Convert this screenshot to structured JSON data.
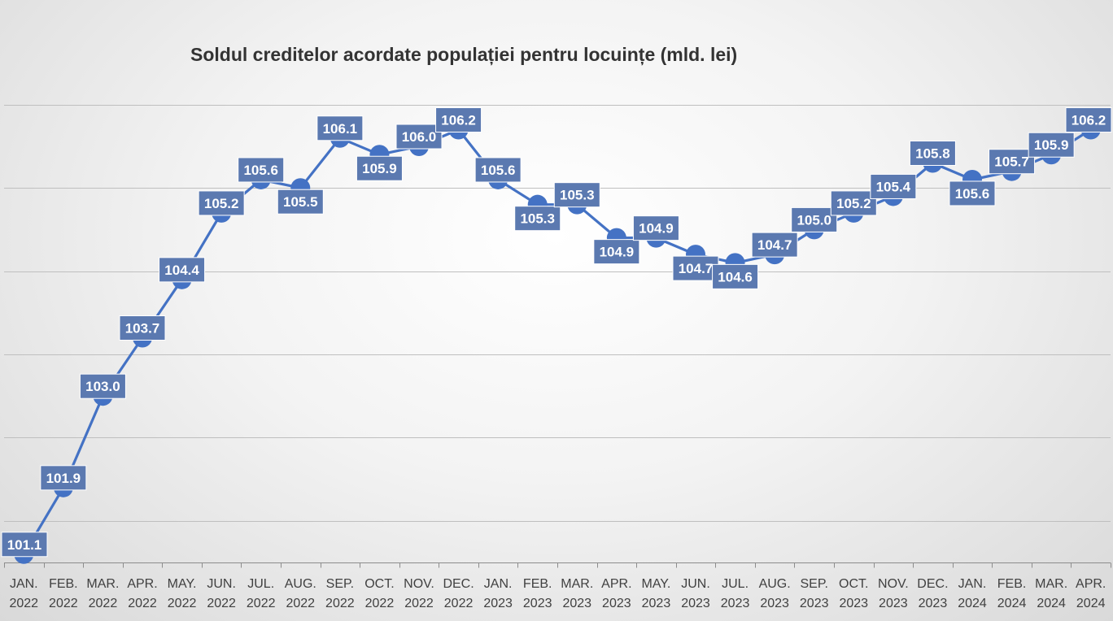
{
  "chart_data": {
    "type": "line",
    "title": "Soldul creditelor acordate populației pentru locuințe (mld. lei)",
    "categories": [
      [
        "JAN.",
        "2022"
      ],
      [
        "FEB.",
        "2022"
      ],
      [
        "MAR.",
        "2022"
      ],
      [
        "APR.",
        "2022"
      ],
      [
        "MAY.",
        "2022"
      ],
      [
        "JUN.",
        "2022"
      ],
      [
        "JUL.",
        "2022"
      ],
      [
        "AUG.",
        "2022"
      ],
      [
        "SEP.",
        "2022"
      ],
      [
        "OCT.",
        "2022"
      ],
      [
        "NOV.",
        "2022"
      ],
      [
        "DEC.",
        "2022"
      ],
      [
        "JAN.",
        "2023"
      ],
      [
        "FEB.",
        "2023"
      ],
      [
        "MAR.",
        "2023"
      ],
      [
        "APR.",
        "2023"
      ],
      [
        "MAY.",
        "2023"
      ],
      [
        "JUN.",
        "2023"
      ],
      [
        "JUL.",
        "2023"
      ],
      [
        "AUG.",
        "2023"
      ],
      [
        "SEP.",
        "2023"
      ],
      [
        "OCT.",
        "2023"
      ],
      [
        "NOV.",
        "2023"
      ],
      [
        "DEC.",
        "2023"
      ],
      [
        "JAN.",
        "2024"
      ],
      [
        "FEB.",
        "2024"
      ],
      [
        "MAR.",
        "2024"
      ],
      [
        "APR.",
        "2024"
      ]
    ],
    "values": [
      101.1,
      101.9,
      103.0,
      103.7,
      104.4,
      105.2,
      105.6,
      105.5,
      106.1,
      105.9,
      106.0,
      106.2,
      105.6,
      105.3,
      105.3,
      104.9,
      104.9,
      104.7,
      104.6,
      104.7,
      105.0,
      105.2,
      105.4,
      105.8,
      105.6,
      105.7,
      105.9,
      106.2
    ],
    "value_labels": [
      "101.1",
      "101.9",
      "103.0",
      "103.7",
      "104.4",
      "105.2",
      "105.6",
      "105.5",
      "106.1",
      "105.9",
      "106.0",
      "106.2",
      "105.6",
      "105.3",
      "105.3",
      "104.9",
      "104.9",
      "104.7",
      "104.6",
      "104.7",
      "105.0",
      "105.2",
      "105.4",
      "105.8",
      "105.6",
      "105.7",
      "105.9",
      "106.2"
    ],
    "label_position": [
      "above",
      "above",
      "above",
      "above",
      "above",
      "above",
      "above",
      "below",
      "above",
      "below",
      "above",
      "above",
      "above",
      "below",
      "above",
      "below",
      "above",
      "below",
      "below",
      "above",
      "above",
      "above",
      "above",
      "above",
      "below",
      "above",
      "above",
      "above"
    ],
    "ylim": [
      101,
      106.5
    ],
    "gridlines": [
      101.5,
      102.5,
      103.5,
      104.5,
      105.5,
      106.5
    ],
    "grid": true,
    "legend": "none",
    "xlabel": "",
    "ylabel": "",
    "colors": {
      "line": "#4472c4",
      "label_background": "#5b79b0",
      "label_text": "#ffffff"
    }
  }
}
